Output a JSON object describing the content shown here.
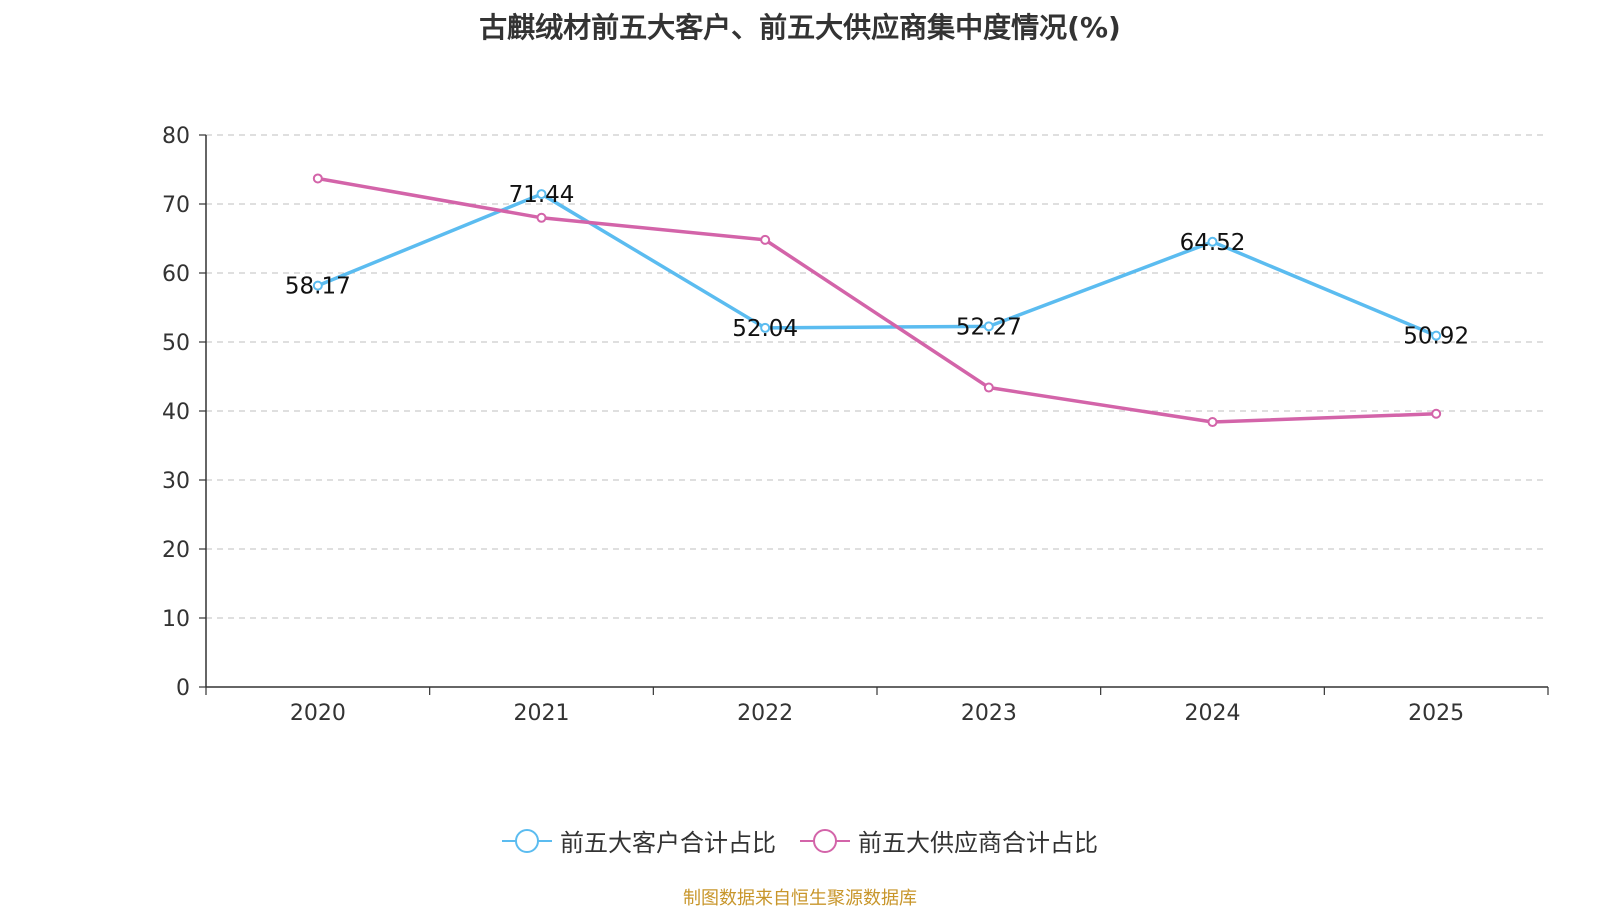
{
  "chart_data": {
    "type": "line",
    "title": "古麒绒材前五大客户、前五大供应商集中度情况(%)",
    "categories": [
      "2020",
      "2021",
      "2022",
      "2023",
      "2024",
      "2025"
    ],
    "series": [
      {
        "name": "前五大客户合计占比",
        "color": "#5bbcf0",
        "values": [
          58.17,
          71.44,
          52.04,
          52.27,
          64.52,
          50.92
        ],
        "labels": [
          "58.17",
          "71.44",
          "52.04",
          "52.27",
          "64.52",
          "50.92"
        ],
        "show_labels": true
      },
      {
        "name": "前五大供应商合计占比",
        "color": "#d364a9",
        "values": [
          73.7,
          68.0,
          64.8,
          43.4,
          38.4,
          39.6
        ],
        "show_labels": false
      }
    ],
    "ylim": [
      0,
      80
    ],
    "yticks": [
      0,
      10,
      20,
      30,
      40,
      50,
      60,
      70,
      80
    ],
    "grid": true,
    "legend_position": "bottom-center",
    "xlabel": "",
    "ylabel": ""
  },
  "source": {
    "text": "制图数据来自恒生聚源数据库",
    "color": "#c8962b"
  }
}
